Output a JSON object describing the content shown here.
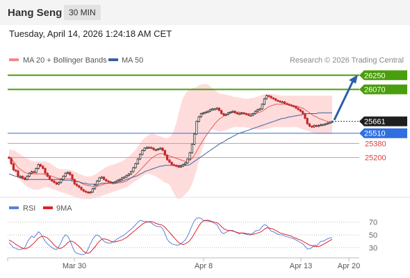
{
  "header": {
    "title": "Hang Seng",
    "timeframe": "30 MIN"
  },
  "timestamp": "Tuesday, April 14, 2026 1:24:18 AM CET",
  "legend": {
    "ma20": "MA 20 + Bollinger Bands",
    "ma50": "MA 50"
  },
  "credit": "Research © 2026 Trading Central",
  "rsi_legend": {
    "rsi": "RSI",
    "ma": "9MA"
  },
  "colors": {
    "green": "#4a9d0c",
    "blue": "#2f6fe0",
    "red": "#e23b3b",
    "up": "#2b2b2b",
    "down": "#c62828",
    "band": "#ffd6d6",
    "ma20": "#e45c5c",
    "ma50": "#3e5f9e",
    "rsi": "#5b7fdc",
    "rsi_ma": "#e02020"
  },
  "chart_data": [
    {
      "type": "candlestick",
      "x_labels": [
        "Mar 30",
        "Apr 8",
        "Apr 13",
        "Apr 20"
      ],
      "ylim": [
        24700,
        26350
      ],
      "levels": [
        {
          "label": "26250",
          "value": 26250,
          "kind": "resistance"
        },
        {
          "label": "26070",
          "value": 26070,
          "kind": "resistance"
        },
        {
          "label": "25510",
          "value": 25510,
          "kind": "pivot"
        },
        {
          "label": "25380",
          "value": 25380,
          "kind": "support"
        },
        {
          "label": "25200",
          "value": 25200,
          "kind": "support"
        }
      ],
      "last_price": {
        "label": "25661",
        "value": 25661
      },
      "close": [
        25190,
        25120,
        25040,
        25030,
        24960,
        24960,
        24940,
        24920,
        24960,
        25000,
        25020,
        25010,
        25060,
        25110,
        25090,
        25060,
        25000,
        24960,
        24920,
        24900,
        24880,
        24860,
        24880,
        24920,
        24960,
        25000,
        25010,
        24980,
        24920,
        24860,
        24840,
        24820,
        24790,
        24770,
        24760,
        24750,
        24760,
        24800,
        24850,
        24900,
        24940,
        24950,
        24920,
        24900,
        24890,
        24880,
        24880,
        24890,
        24910,
        24920,
        24940,
        24950,
        24970,
        24990,
        25020,
        25070,
        25120,
        25180,
        25240,
        25290,
        25320,
        25330,
        25330,
        25320,
        25300,
        25300,
        25310,
        25320,
        25290,
        25230,
        25170,
        25140,
        25110,
        25100,
        25090,
        25080,
        25090,
        25110,
        25130,
        25180,
        25260,
        25370,
        25500,
        25660,
        25720,
        25760,
        25770,
        25780,
        25790,
        25810,
        25820,
        25820,
        25830,
        25800,
        25760,
        25740,
        25750,
        25770,
        25780,
        25790,
        25770,
        25760,
        25760,
        25770,
        25760,
        25750,
        25740,
        25740,
        25760,
        25790,
        25810,
        25820,
        25880,
        25950,
        25990,
        25980,
        25960,
        25950,
        25930,
        25920,
        25910,
        25910,
        25890,
        25880,
        25870,
        25860,
        25850,
        25830,
        25810,
        25790,
        25760,
        25700,
        25630,
        25600,
        25590,
        25610,
        25600,
        25610,
        25620,
        25620,
        25630,
        25640,
        25650,
        25661
      ],
      "ma20": [
        25210,
        25180,
        25150,
        25110,
        25070,
        25050,
        25030,
        25010,
        25000,
        24990,
        24990,
        24990,
        24990,
        24990,
        24990,
        24990,
        24980,
        24980,
        24970,
        24960,
        24950,
        24940,
        24930,
        24930,
        24930,
        24930,
        24930,
        24930,
        24920,
        24910,
        24900,
        24890,
        24870,
        24860,
        24850,
        24840,
        24840,
        24830,
        24830,
        24830,
        24840,
        24850,
        24860,
        24870,
        24870,
        24870,
        24870,
        24870,
        24870,
        24880,
        24880,
        24890,
        24900,
        24920,
        24940,
        24960,
        24980,
        25010,
        25040,
        25070,
        25100,
        25130,
        25160,
        25190,
        25210,
        25230,
        25240,
        25250,
        25250,
        25240,
        25230,
        25220,
        25210,
        25200,
        25190,
        25180,
        25170,
        25160,
        25150,
        25150,
        25160,
        25190,
        25230,
        25280,
        25330,
        25380,
        25430,
        25470,
        25510,
        25550,
        25590,
        25630,
        25660,
        25690,
        25710,
        25730,
        25740,
        25760,
        25770,
        25780,
        25780,
        25780,
        25780,
        25770,
        25770,
        25760,
        25760,
        25760,
        25760,
        25760,
        25770,
        25780,
        25790,
        25810,
        25830,
        25850,
        25860,
        25870,
        25880,
        25880,
        25880,
        25880,
        25880,
        25880,
        25870,
        25870,
        25860,
        25860,
        25850,
        25840,
        25830,
        25810,
        25790,
        25770,
        25750,
        25730,
        25720,
        25700,
        25690,
        25680,
        25670,
        25660,
        25650,
        25650
      ],
      "ma50": [
        24990,
        24980,
        24970,
        24960,
        24950,
        24940,
        24930,
        24920,
        24920,
        24920,
        24920,
        24920,
        24920,
        24920,
        24920,
        24920,
        24920,
        24920,
        24920,
        24920,
        24920,
        24920,
        24920,
        24920,
        24910,
        24910,
        24910,
        24910,
        24900,
        24900,
        24890,
        24890,
        24880,
        24870,
        24870,
        24860,
        24860,
        24860,
        24860,
        24860,
        24860,
        24870,
        24870,
        24870,
        24870,
        24880,
        24880,
        24880,
        24890,
        24890,
        24900,
        24910,
        24920,
        24930,
        24940,
        24950,
        24960,
        24970,
        24990,
        25000,
        25020,
        25030,
        25040,
        25050,
        25060,
        25070,
        25080,
        25090,
        25090,
        25100,
        25100,
        25100,
        25100,
        25100,
        25100,
        25100,
        25100,
        25100,
        25100,
        25100,
        25110,
        25130,
        25150,
        25170,
        25190,
        25210,
        25230,
        25250,
        25270,
        25290,
        25310,
        25330,
        25350,
        25370,
        25390,
        25400,
        25420,
        25440,
        25450,
        25470,
        25480,
        25500,
        25510,
        25520,
        25530,
        25540,
        25550,
        25560,
        25570,
        25580,
        25590,
        25600,
        25610,
        25620,
        25630,
        25640,
        25650,
        25660,
        25670,
        25680,
        25690,
        25700,
        25700,
        25710,
        25720,
        25720,
        25730,
        25730,
        25740,
        25740,
        25750,
        25750,
        25760,
        25760,
        25760,
        25760,
        25760,
        25770,
        25770,
        25770,
        25770,
        25770,
        25770,
        25770
      ],
      "bb_upper": [
        25300,
        25300,
        25290,
        25280,
        25260,
        25240,
        25220,
        25200,
        25190,
        25170,
        25160,
        25150,
        25150,
        25150,
        25150,
        25150,
        25150,
        25140,
        25130,
        25110,
        25090,
        25070,
        25060,
        25050,
        25050,
        25050,
        25050,
        25040,
        25030,
        25020,
        25010,
        24990,
        24980,
        24970,
        24960,
        24960,
        24960,
        24970,
        24980,
        25000,
        25020,
        25040,
        25060,
        25080,
        25090,
        25100,
        25110,
        25120,
        25130,
        25140,
        25150,
        25170,
        25190,
        25210,
        25240,
        25270,
        25300,
        25340,
        25380,
        25420,
        25450,
        25470,
        25490,
        25500,
        25500,
        25490,
        25480,
        25470,
        25460,
        25450,
        25450,
        25460,
        25490,
        25550,
        25640,
        25760,
        25870,
        25960,
        26010,
        26050,
        26070,
        26080,
        26090,
        26100,
        26120,
        26130,
        26140,
        26140,
        26130,
        26110,
        26080,
        26060,
        26040,
        26020,
        26010,
        26010,
        26000,
        26000,
        25990,
        25980,
        25970,
        25970,
        25960,
        25960,
        25950,
        25950,
        25950,
        25960,
        25960,
        25970,
        25980,
        25990,
        26000,
        26010,
        26010,
        26010,
        26010,
        26010,
        26000,
        26000,
        25990,
        25990,
        25990,
        25990,
        25990,
        25990,
        25990,
        25990,
        25990,
        25990,
        25990,
        25990,
        25990,
        25990,
        25990,
        25990,
        25990,
        25990,
        25990,
        25990,
        25990,
        25990,
        25990,
        25990
      ],
      "bb_lower": [
        25140,
        25080,
        25020,
        24980,
        24940,
        24910,
        24880,
        24850,
        24830,
        24810,
        24800,
        24790,
        24790,
        24790,
        24800,
        24810,
        24820,
        24820,
        24810,
        24800,
        24790,
        24780,
        24770,
        24760,
        24750,
        24740,
        24730,
        24720,
        24710,
        24700,
        24690,
        24680,
        24670,
        24670,
        24670,
        24670,
        24670,
        24680,
        24680,
        24690,
        24700,
        24710,
        24720,
        24730,
        24740,
        24750,
        24760,
        24770,
        24780,
        24790,
        24800,
        24810,
        24820,
        24840,
        24860,
        24880,
        24900,
        24920,
        24940,
        24960,
        24980,
        24990,
        24990,
        24980,
        24970,
        24960,
        24940,
        24920,
        24900,
        24880,
        24870,
        24850,
        24800,
        24740,
        24690,
        24670,
        24680,
        24700,
        24730,
        24760,
        24800,
        24860,
        24940,
        25040,
        25150,
        25260,
        25360,
        25450,
        25520,
        25560,
        25560,
        25550,
        25540,
        25530,
        25530,
        25540,
        25550,
        25560,
        25570,
        25580,
        25590,
        25590,
        25590,
        25590,
        25590,
        25580,
        25580,
        25570,
        25570,
        25560,
        25560,
        25560,
        25560,
        25560,
        25570,
        25570,
        25580,
        25590,
        25590,
        25590,
        25590,
        25590,
        25590,
        25590,
        25590,
        25590,
        25590,
        25590,
        25580,
        25570,
        25560,
        25550,
        25540,
        25530,
        25520,
        25510,
        25500,
        25500,
        25500,
        25500,
        25500,
        25500,
        25500,
        25500
      ]
    },
    {
      "type": "line",
      "title": "RSI",
      "y_ticks": [
        70,
        50,
        30
      ],
      "ylim": [
        15,
        85
      ],
      "rsi": [
        38,
        34,
        30,
        29,
        27,
        27,
        28,
        30,
        38,
        44,
        48,
        46,
        50,
        55,
        52,
        46,
        40,
        36,
        33,
        30,
        28,
        27,
        31,
        38,
        46,
        50,
        48,
        41,
        32,
        24,
        21,
        20,
        19,
        19,
        21,
        28,
        36,
        43,
        48,
        50,
        48,
        44,
        40,
        38,
        37,
        37,
        39,
        41,
        44,
        46,
        48,
        50,
        53,
        56,
        59,
        62,
        66,
        70,
        73,
        72,
        71,
        71,
        70,
        69,
        66,
        64,
        63,
        63,
        60,
        52,
        43,
        39,
        36,
        35,
        34,
        34,
        36,
        39,
        42,
        48,
        56,
        65,
        72,
        76,
        77,
        76,
        73,
        72,
        72,
        71,
        70,
        68,
        66,
        60,
        54,
        52,
        54,
        56,
        57,
        57,
        55,
        53,
        52,
        53,
        52,
        51,
        50,
        50,
        53,
        56,
        57,
        58,
        63,
        66,
        65,
        60,
        56,
        55,
        53,
        51,
        50,
        50,
        48,
        47,
        46,
        45,
        44,
        42,
        40,
        38,
        36,
        32,
        28,
        28,
        30,
        34,
        33,
        36,
        40,
        40,
        42,
        44,
        45,
        46
      ],
      "ma9": [
        42,
        40,
        38,
        35,
        33,
        31,
        29,
        28,
        29,
        31,
        34,
        37,
        41,
        45,
        47,
        48,
        47,
        45,
        42,
        38,
        34,
        31,
        29,
        29,
        31,
        34,
        38,
        40,
        40,
        38,
        35,
        32,
        28,
        24,
        22,
        21,
        23,
        27,
        31,
        36,
        40,
        43,
        44,
        43,
        42,
        40,
        39,
        39,
        40,
        41,
        42,
        44,
        46,
        49,
        52,
        55,
        58,
        61,
        64,
        67,
        69,
        70,
        71,
        71,
        70,
        68,
        67,
        66,
        65,
        62,
        58,
        54,
        50,
        46,
        42,
        38,
        36,
        35,
        36,
        38,
        41,
        46,
        52,
        58,
        64,
        69,
        72,
        73,
        73,
        72,
        71,
        70,
        69,
        67,
        63,
        60,
        58,
        57,
        57,
        56,
        55,
        54,
        53,
        53,
        53,
        52,
        52,
        51,
        51,
        52,
        53,
        54,
        56,
        59,
        61,
        61,
        60,
        59,
        57,
        55,
        53,
        52,
        51,
        50,
        49,
        48,
        46,
        45,
        43,
        42,
        40,
        38,
        36,
        34,
        33,
        32,
        32,
        32,
        33,
        35,
        37,
        39,
        41,
        43
      ]
    }
  ]
}
